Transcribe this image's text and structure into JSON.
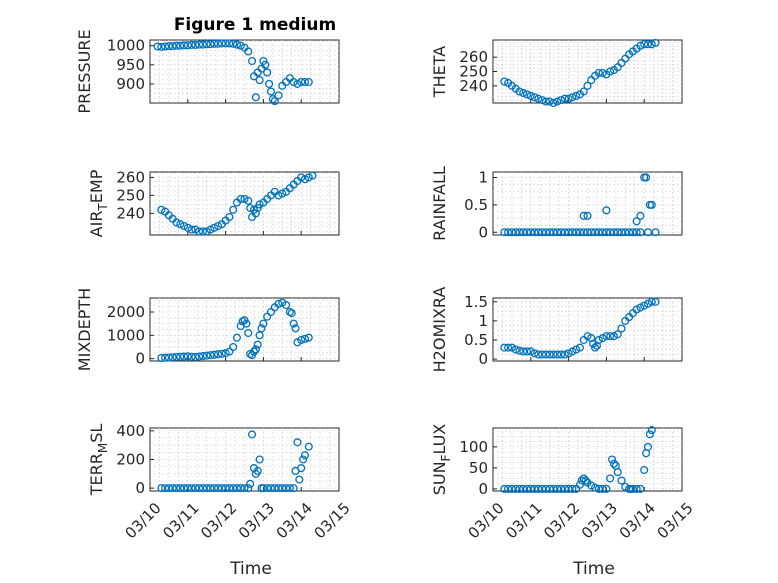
{
  "figure": {
    "title": "Figure 1 medium",
    "xlabel": "Time"
  },
  "colors": {
    "series": "#0072BD",
    "axis": "#262626",
    "grid": "#d0d0d0"
  },
  "chart_data": [
    {
      "type": "scatter",
      "id": "pressure",
      "ylabel": "PRESSURE",
      "ylabel_sub": null,
      "xlim": [
        0,
        5
      ],
      "ylim": [
        850,
        1015
      ],
      "yticks": [
        900,
        950,
        1000
      ],
      "ytick_labels": [
        "900",
        "950",
        "1000"
      ],
      "grid": true,
      "x": [
        0.2,
        0.3,
        0.4,
        0.5,
        0.6,
        0.7,
        0.8,
        0.9,
        1.0,
        1.1,
        1.2,
        1.3,
        1.4,
        1.5,
        1.6,
        1.7,
        1.8,
        1.9,
        2.0,
        2.1,
        2.2,
        2.3,
        2.4,
        2.5,
        2.6,
        2.7,
        2.75,
        2.8,
        2.85,
        2.9,
        2.95,
        3.0,
        3.05,
        3.1,
        3.15,
        3.2,
        3.25,
        3.3,
        3.4,
        3.5,
        3.6,
        3.7,
        3.8,
        3.9,
        4.0,
        4.1,
        4.2
      ],
      "y": [
        998,
        997,
        998,
        999,
        999,
        1000,
        1000,
        1001,
        1001,
        1002,
        1002,
        1003,
        1003,
        1004,
        1004,
        1005,
        1005,
        1006,
        1006,
        1006,
        1005,
        1003,
        1000,
        995,
        985,
        960,
        920,
        865,
        930,
        910,
        940,
        960,
        950,
        930,
        900,
        880,
        860,
        855,
        870,
        895,
        905,
        915,
        905,
        900,
        905,
        905,
        905
      ]
    },
    {
      "type": "scatter",
      "id": "theta",
      "ylabel": "THETA",
      "ylabel_sub": null,
      "xlim": [
        0,
        5
      ],
      "ylim": [
        228,
        272
      ],
      "yticks": [
        240,
        250,
        260
      ],
      "ytick_labels": [
        "240",
        "250",
        "260"
      ],
      "grid": true,
      "x": [
        0.3,
        0.4,
        0.5,
        0.6,
        0.7,
        0.8,
        0.9,
        1.0,
        1.1,
        1.2,
        1.3,
        1.4,
        1.5,
        1.6,
        1.7,
        1.8,
        1.9,
        2.0,
        2.1,
        2.2,
        2.3,
        2.4,
        2.5,
        2.6,
        2.7,
        2.8,
        2.9,
        3.0,
        3.1,
        3.2,
        3.3,
        3.4,
        3.5,
        3.6,
        3.7,
        3.8,
        3.9,
        4.0,
        4.1,
        4.2,
        4.3
      ],
      "y": [
        243,
        242,
        240,
        238,
        236,
        235,
        234,
        233,
        232,
        231,
        230,
        229,
        229,
        228,
        229,
        230,
        231,
        231,
        232,
        233,
        234,
        236,
        240,
        244,
        247,
        249,
        249,
        248,
        250,
        251,
        253,
        256,
        259,
        262,
        264,
        266,
        268,
        269,
        269,
        269,
        270
      ]
    },
    {
      "type": "scatter",
      "id": "air_temp",
      "ylabel": "AIR",
      "ylabel_sub": "T",
      "ylabel_tail": "EMP",
      "xlim": [
        0,
        5
      ],
      "ylim": [
        228,
        263
      ],
      "yticks": [
        240,
        250,
        260
      ],
      "ytick_labels": [
        "240",
        "250",
        "260"
      ],
      "grid": true,
      "x": [
        0.3,
        0.4,
        0.5,
        0.6,
        0.7,
        0.8,
        0.9,
        1.0,
        1.1,
        1.2,
        1.3,
        1.4,
        1.5,
        1.6,
        1.7,
        1.8,
        1.9,
        2.0,
        2.1,
        2.2,
        2.3,
        2.4,
        2.5,
        2.6,
        2.65,
        2.7,
        2.75,
        2.8,
        2.85,
        2.9,
        3.0,
        3.1,
        3.2,
        3.3,
        3.4,
        3.5,
        3.6,
        3.7,
        3.8,
        3.9,
        4.0,
        4.1,
        4.2,
        4.3
      ],
      "y": [
        242,
        241,
        239,
        237,
        235,
        234,
        233,
        232,
        231,
        231,
        230,
        230,
        230,
        231,
        232,
        233,
        234,
        236,
        238,
        242,
        246,
        248,
        248,
        247,
        243,
        238,
        242,
        240,
        243,
        245,
        246,
        248,
        250,
        252,
        250,
        251,
        252,
        254,
        256,
        258,
        260,
        259,
        260,
        261
      ]
    },
    {
      "type": "scatter",
      "id": "rainfall",
      "ylabel": "RAINFALL",
      "ylabel_sub": null,
      "xlim": [
        0,
        5
      ],
      "ylim": [
        -0.05,
        1.1
      ],
      "yticks": [
        0,
        0.5,
        1
      ],
      "ytick_labels": [
        "0",
        "0.5",
        "1"
      ],
      "grid": true,
      "x": [
        0.3,
        0.4,
        0.5,
        0.6,
        0.7,
        0.8,
        0.9,
        1.0,
        1.1,
        1.2,
        1.3,
        1.4,
        1.5,
        1.6,
        1.7,
        1.8,
        1.9,
        2.0,
        2.1,
        2.2,
        2.3,
        2.4,
        2.5,
        2.6,
        2.7,
        2.8,
        2.9,
        3.0,
        3.1,
        3.2,
        3.3,
        3.4,
        3.5,
        3.6,
        3.7,
        3.8,
        3.9,
        2.4,
        2.5,
        3.0,
        3.8,
        3.9,
        4.0,
        4.05,
        4.1,
        4.15,
        4.2,
        4.3
      ],
      "y": [
        0,
        0,
        0,
        0,
        0,
        0,
        0,
        0,
        0,
        0,
        0,
        0,
        0,
        0,
        0,
        0,
        0,
        0,
        0,
        0,
        0,
        0,
        0,
        0,
        0,
        0,
        0,
        0,
        0,
        0,
        0,
        0,
        0,
        0,
        0,
        0,
        0,
        0.3,
        0.3,
        0.4,
        0.2,
        0.3,
        1.0,
        1.0,
        0,
        0.5,
        0.5,
        0
      ]
    },
    {
      "type": "scatter",
      "id": "mixdepth",
      "ylabel": "MIXDEPTH",
      "ylabel_sub": null,
      "xlim": [
        0,
        5
      ],
      "ylim": [
        -100,
        2600
      ],
      "yticks": [
        0,
        1000,
        2000
      ],
      "ytick_labels": [
        "0",
        "1000",
        "2000"
      ],
      "grid": true,
      "x": [
        0.3,
        0.4,
        0.5,
        0.6,
        0.7,
        0.8,
        0.9,
        1.0,
        1.1,
        1.2,
        1.3,
        1.4,
        1.5,
        1.6,
        1.7,
        1.8,
        1.9,
        2.0,
        2.1,
        2.2,
        2.3,
        2.4,
        2.45,
        2.5,
        2.55,
        2.6,
        2.65,
        2.7,
        2.75,
        2.8,
        2.85,
        2.9,
        2.95,
        3.0,
        3.1,
        3.2,
        3.3,
        3.4,
        3.5,
        3.6,
        3.7,
        3.75,
        3.8,
        3.85,
        3.9,
        4.0,
        4.1,
        4.2
      ],
      "y": [
        30,
        40,
        50,
        60,
        70,
        80,
        90,
        100,
        80,
        70,
        90,
        110,
        130,
        150,
        170,
        190,
        210,
        240,
        300,
        500,
        900,
        1400,
        1600,
        1650,
        1500,
        1100,
        200,
        150,
        300,
        400,
        600,
        1000,
        1300,
        1500,
        1800,
        2000,
        2200,
        2350,
        2400,
        2300,
        2000,
        1950,
        1500,
        1300,
        700,
        800,
        850,
        900
      ]
    },
    {
      "type": "scatter",
      "id": "h2omixra",
      "ylabel": "H2OMIXRA",
      "ylabel_sub": null,
      "xlim": [
        0,
        5
      ],
      "ylim": [
        -0.05,
        1.6
      ],
      "yticks": [
        0,
        0.5,
        1,
        1.5
      ],
      "ytick_labels": [
        "0",
        "0.5",
        "1",
        "1.5"
      ],
      "grid": true,
      "x": [
        0.3,
        0.4,
        0.5,
        0.6,
        0.7,
        0.8,
        0.9,
        1.0,
        1.1,
        1.2,
        1.3,
        1.4,
        1.5,
        1.6,
        1.7,
        1.8,
        1.9,
        2.0,
        2.1,
        2.2,
        2.3,
        2.4,
        2.5,
        2.6,
        2.65,
        2.7,
        2.75,
        2.8,
        2.9,
        3.0,
        3.1,
        3.2,
        3.3,
        3.4,
        3.5,
        3.6,
        3.7,
        3.8,
        3.9,
        4.0,
        4.1,
        4.2,
        4.3
      ],
      "y": [
        0.3,
        0.3,
        0.3,
        0.25,
        0.22,
        0.2,
        0.2,
        0.2,
        0.15,
        0.12,
        0.12,
        0.12,
        0.12,
        0.12,
        0.12,
        0.12,
        0.12,
        0.15,
        0.2,
        0.25,
        0.3,
        0.5,
        0.6,
        0.55,
        0.4,
        0.3,
        0.35,
        0.5,
        0.55,
        0.6,
        0.6,
        0.6,
        0.65,
        0.8,
        1.0,
        1.1,
        1.2,
        1.3,
        1.35,
        1.4,
        1.45,
        1.5,
        1.5
      ]
    },
    {
      "type": "scatter",
      "id": "terr_msl",
      "ylabel": "TERR",
      "ylabel_sub": "M",
      "ylabel_tail": "SL",
      "xlim": [
        0,
        5
      ],
      "ylim": [
        -20,
        420
      ],
      "yticks": [
        0,
        200,
        400
      ],
      "ytick_labels": [
        "0",
        "200",
        "400"
      ],
      "grid": true,
      "x": [
        0.3,
        0.4,
        0.5,
        0.6,
        0.7,
        0.8,
        0.9,
        1.0,
        1.1,
        1.2,
        1.3,
        1.4,
        1.5,
        1.6,
        1.7,
        1.8,
        1.9,
        2.0,
        2.1,
        2.2,
        2.3,
        2.4,
        2.5,
        2.6,
        2.65,
        2.7,
        2.75,
        2.8,
        2.85,
        2.9,
        2.95,
        3.0,
        3.1,
        3.2,
        3.3,
        3.4,
        3.5,
        3.6,
        3.7,
        3.8,
        3.85,
        3.9,
        3.95,
        4.0,
        4.05,
        4.1,
        4.2
      ],
      "y": [
        0,
        0,
        0,
        0,
        0,
        0,
        0,
        0,
        0,
        0,
        0,
        0,
        0,
        0,
        0,
        0,
        0,
        0,
        0,
        0,
        0,
        0,
        0,
        0,
        30,
        375,
        140,
        100,
        120,
        200,
        0,
        0,
        0,
        0,
        0,
        0,
        0,
        0,
        0,
        0,
        120,
        320,
        60,
        140,
        200,
        230,
        290
      ]
    },
    {
      "type": "scatter",
      "id": "sun_flux",
      "ylabel": "SUN",
      "ylabel_sub": "F",
      "ylabel_tail": "LUX",
      "xlim": [
        0,
        5
      ],
      "ylim": [
        -5,
        145
      ],
      "yticks": [
        0,
        50,
        100
      ],
      "ytick_labels": [
        "0",
        "50",
        "100"
      ],
      "grid": true,
      "x": [
        0.3,
        0.4,
        0.5,
        0.6,
        0.7,
        0.8,
        0.9,
        1.0,
        1.1,
        1.2,
        1.3,
        1.4,
        1.5,
        1.6,
        1.7,
        1.8,
        1.9,
        2.0,
        2.1,
        2.2,
        2.3,
        2.35,
        2.4,
        2.45,
        2.5,
        2.6,
        2.7,
        2.8,
        2.9,
        3.0,
        3.1,
        3.15,
        3.2,
        3.25,
        3.3,
        3.4,
        3.5,
        3.6,
        3.65,
        3.7,
        3.8,
        3.9,
        4.0,
        4.05,
        4.1,
        4.15,
        4.2
      ],
      "y": [
        0,
        0,
        0,
        0,
        0,
        0,
        0,
        0,
        0,
        0,
        0,
        0,
        0,
        0,
        0,
        0,
        0,
        0,
        0,
        0,
        10,
        20,
        25,
        20,
        15,
        8,
        3,
        0,
        0,
        0,
        25,
        70,
        60,
        55,
        40,
        20,
        5,
        0,
        0,
        0,
        0,
        0,
        45,
        85,
        100,
        130,
        140
      ]
    }
  ],
  "xticks": {
    "values": [
      0,
      1,
      2,
      3,
      4,
      5
    ],
    "labels": [
      "03/10",
      "03/11",
      "03/12",
      "03/13",
      "03/14",
      "03/15"
    ]
  }
}
